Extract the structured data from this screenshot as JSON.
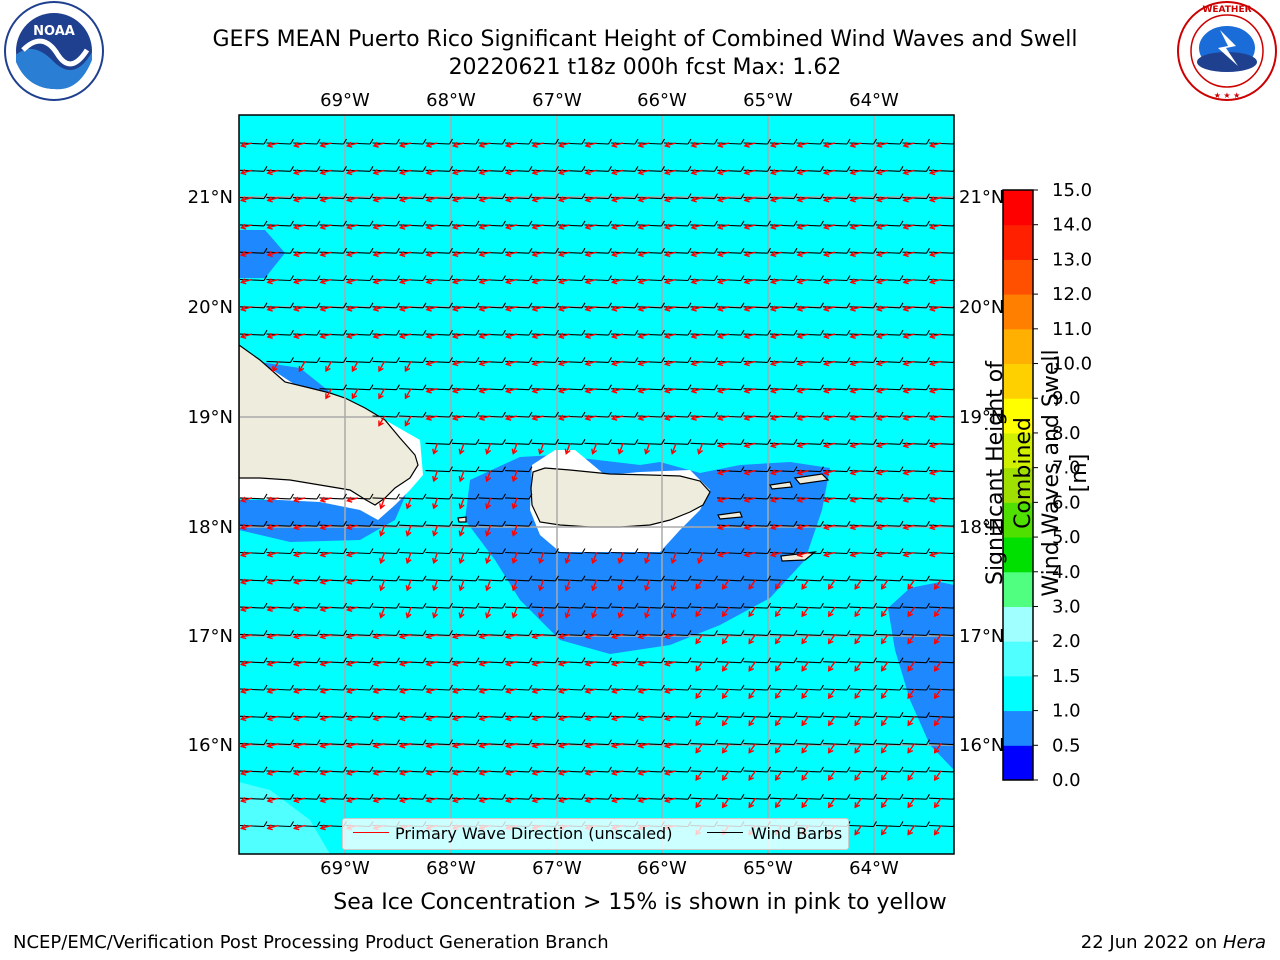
{
  "header": {
    "title_line1": "GEFS MEAN Puerto Rico Significant Height of Combined Wind Waves and Swell",
    "title_line2": "20220621 t18z 000h fcst   Max: 1.62"
  },
  "logos": {
    "left": {
      "name": "noaa-logo",
      "text": "NOAA"
    },
    "right": {
      "name": "nws-logo",
      "text": "NATIONAL WEATHER SERVICE"
    }
  },
  "map": {
    "lon_labels": [
      "69°W",
      "68°W",
      "67°W",
      "66°W",
      "65°W",
      "64°W"
    ],
    "lat_labels": [
      "21°N",
      "20°N",
      "19°N",
      "18°N",
      "17°N",
      "16°N"
    ],
    "colors": {
      "sea_light": "#00ffff",
      "sea_mid": "#1e88ff",
      "sea_pale": "#50ffff",
      "land": "#eeecdc",
      "arrow": "#ff0000",
      "barb": "#000000"
    }
  },
  "legend": {
    "wave_label": "Primary Wave Direction (unscaled)",
    "barb_label": "Wind Barbs"
  },
  "colorbar": {
    "ticks": [
      "0.0",
      "0.5",
      "1.0",
      "1.5",
      "2.0",
      "3.0",
      "4.0",
      "5.0",
      "6.0",
      "7.0",
      "8.0",
      "9.0",
      "10.0",
      "11.0",
      "12.0",
      "13.0",
      "14.0",
      "15.0"
    ],
    "colors": [
      "#0000ff",
      "#1e88ff",
      "#00ffff",
      "#50ffff",
      "#a0ffff",
      "#50ff80",
      "#00e000",
      "#50e000",
      "#a0e000",
      "#d0f000",
      "#ffff00",
      "#ffd000",
      "#ffb000",
      "#ff8000",
      "#ff5000",
      "#ff2000",
      "#ff0000"
    ],
    "label_line1": "Significant Height of Combined",
    "label_line2": "Wind Waves and Swell [m]"
  },
  "caption": "Sea Ice Concentration > 15% is shown in pink to yellow",
  "footer": {
    "left": "NCEP/EMC/Verification Post Processing Product Generation Branch",
    "right_date": "22 Jun 2022 on ",
    "right_host": "Hera"
  }
}
